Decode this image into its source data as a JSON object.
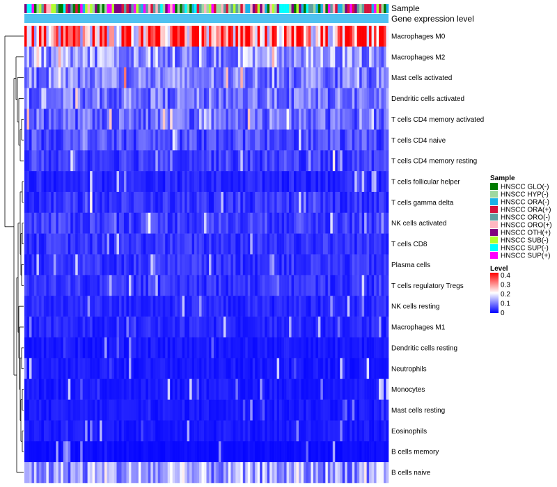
{
  "chart_data": {
    "type": "heatmap",
    "title": "",
    "annotation_tracks": [
      "Sample",
      "Gene expression level"
    ],
    "rows": [
      "Macrophages M0",
      "Macrophages M2",
      "Mast cells activated",
      "Dendritic cells activated",
      "T cells CD4 memory activated",
      "T cells CD4 naive",
      "T cells CD4 memory resting",
      "T cells follicular helper",
      "T cells gamma delta",
      "NK cells activated",
      "T cells CD8",
      "Plasma cells",
      "T cells regulatory  Tregs",
      "NK cells resting",
      "Macrophages M1",
      "Dendritic cells resting",
      "Neutrophils",
      "Monocytes",
      "Mast cells resting",
      "Eosinophils",
      "B cells memory",
      "B cells naive"
    ],
    "row_typical_level": [
      0.32,
      0.12,
      0.1,
      0.09,
      0.08,
      0.06,
      0.05,
      0.03,
      0.04,
      0.05,
      0.04,
      0.04,
      0.04,
      0.03,
      0.03,
      0.02,
      0.02,
      0.02,
      0.02,
      0.02,
      0.01,
      0.12
    ],
    "n_samples": 150,
    "color_scale": {
      "title": "Level",
      "range": [
        0,
        0.4
      ],
      "ticks": [
        "0.4",
        "0.3",
        "0.2",
        "0.1",
        "0"
      ],
      "colors": [
        "#0000ff",
        "#ffffff",
        "#ff0000"
      ]
    },
    "legend": {
      "title": "Sample",
      "position": "right",
      "items": [
        {
          "label": "HNSCC GLO(-)",
          "color": "#007a00"
        },
        {
          "label": "HNSCC HYP(-)",
          "color": "#9fd89f"
        },
        {
          "label": "HNSCC ORA(-)",
          "color": "#1ab2e6"
        },
        {
          "label": "HNSCC ORA(+)",
          "color": "#d6143c"
        },
        {
          "label": "HNSCC ORO(-)",
          "color": "#5f9ea0"
        },
        {
          "label": "HNSCC ORO(+)",
          "color": "#ffb6c1"
        },
        {
          "label": "HNSCC OTH(+)",
          "color": "#800080"
        },
        {
          "label": "HNSCC SUB(-)",
          "color": "#b0ff2f"
        },
        {
          "label": "HNSCC SUP(-)",
          "color": "#00ffff"
        },
        {
          "label": "HNSCC SUP(+)",
          "color": "#ff00ff"
        }
      ]
    },
    "expression_bar_color": "#4fc1f0"
  }
}
